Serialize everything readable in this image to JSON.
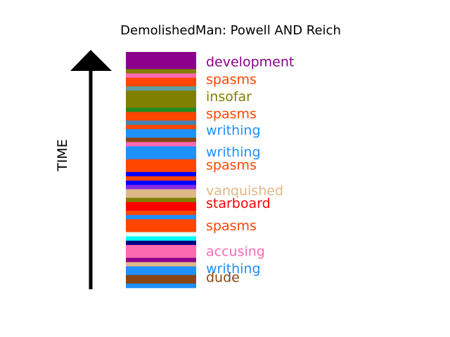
{
  "chart_data": {
    "type": "bar",
    "title": "DemolishedMan: Powell AND Reich",
    "ylabel": "TIME",
    "arrow": "up",
    "segments": [
      {
        "color": "#8B008B",
        "weight": 4
      },
      {
        "color": "#808000",
        "weight": 1
      },
      {
        "color": "#FF69B4",
        "weight": 1
      },
      {
        "color": "#FF4500",
        "weight": 2
      },
      {
        "color": "#5F9EA0",
        "weight": 1
      },
      {
        "color": "#808000",
        "weight": 4
      },
      {
        "color": "#228B22",
        "weight": 1
      },
      {
        "color": "#FF4500",
        "weight": 2
      },
      {
        "color": "#4682B4",
        "weight": 1
      },
      {
        "color": "#FF4500",
        "weight": 1
      },
      {
        "color": "#1E90FF",
        "weight": 2
      },
      {
        "color": "#8B4513",
        "weight": 1
      },
      {
        "color": "#FF69B4",
        "weight": 1
      },
      {
        "color": "#1E90FF",
        "weight": 3
      },
      {
        "color": "#FF4500",
        "weight": 3
      },
      {
        "color": "#0000FF",
        "weight": 1
      },
      {
        "color": "#FF4500",
        "weight": 1
      },
      {
        "color": "#0000FF",
        "weight": 1
      },
      {
        "color": "#8A2BE2",
        "weight": 1
      },
      {
        "color": "#DEB887",
        "weight": 2
      },
      {
        "color": "#808000",
        "weight": 1
      },
      {
        "color": "#FF0000",
        "weight": 2
      },
      {
        "color": "#FF4500",
        "weight": 1
      },
      {
        "color": "#1E90FF",
        "weight": 1
      },
      {
        "color": "#FF4500",
        "weight": 3
      },
      {
        "color": "#E0FFFF",
        "weight": 1
      },
      {
        "color": "#00FFFF",
        "weight": 1
      },
      {
        "color": "#000080",
        "weight": 1
      },
      {
        "color": "#FF69B4",
        "weight": 3
      },
      {
        "color": "#8B008B",
        "weight": 1
      },
      {
        "color": "#DEB887",
        "weight": 1
      },
      {
        "color": "#1E90FF",
        "weight": 2
      },
      {
        "color": "#8B4513",
        "weight": 2
      },
      {
        "color": "#1E90FF",
        "weight": 1
      }
    ],
    "labels": [
      {
        "text": "development",
        "color": "#8B008B",
        "pos": 0.043
      },
      {
        "text": "spasms",
        "color": "#FF4500",
        "pos": 0.118
      },
      {
        "text": "insofar",
        "color": "#808000",
        "pos": 0.19
      },
      {
        "text": "spasms",
        "color": "#FF4500",
        "pos": 0.263
      },
      {
        "text": "writhing",
        "color": "#1E90FF",
        "pos": 0.334
      },
      {
        "text": "writhing",
        "color": "#1E90FF",
        "pos": 0.425
      },
      {
        "text": "spasms",
        "color": "#FF4500",
        "pos": 0.481
      },
      {
        "text": "vanquished",
        "color": "#DEB887",
        "pos": 0.59
      },
      {
        "text": "starboard",
        "color": "#FF0000",
        "pos": 0.643
      },
      {
        "text": "spasms",
        "color": "#FF4500",
        "pos": 0.738
      },
      {
        "text": "accusing",
        "color": "#FF69B4",
        "pos": 0.847
      },
      {
        "text": "writhing",
        "color": "#1E90FF",
        "pos": 0.92
      },
      {
        "text": "dude",
        "color": "#8B4513",
        "pos": 0.957
      }
    ]
  }
}
